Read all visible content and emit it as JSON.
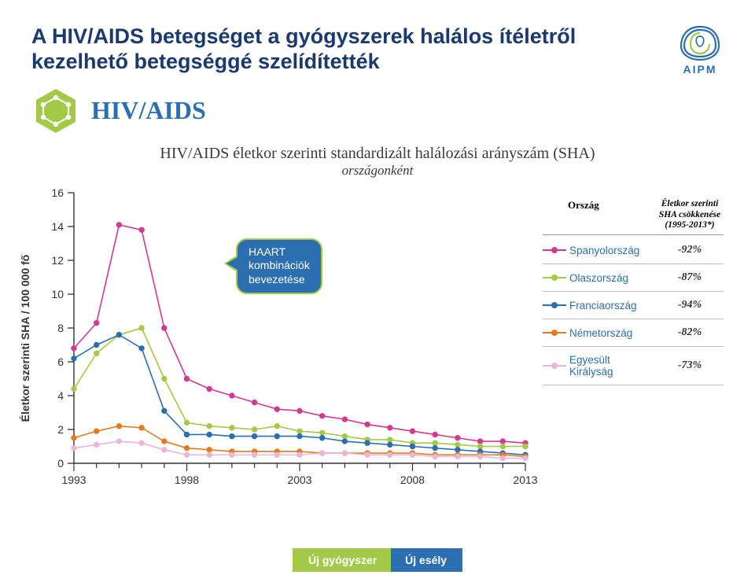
{
  "title": "A HIV/AIDS betegséget a gyógyszerek halálos ítéletről kezelhető betegséggé szelídítették",
  "logo_text": "AIPM",
  "subhead": "HIV/AIDS",
  "chart": {
    "type": "line",
    "title": "HIV/AIDS életkor szerinti standardizált halálozási arányszám (SHA)",
    "subtitle": "országonként",
    "y_label": "Életkor szerinti SHA / 100 000 fő",
    "x_label": "",
    "ylim": [
      0,
      16
    ],
    "yticks": [
      0,
      2,
      4,
      6,
      8,
      10,
      12,
      14,
      16
    ],
    "xlim": [
      1993,
      2013
    ],
    "xticks": [
      1993,
      1998,
      2003,
      2008,
      2013
    ],
    "years": [
      1993,
      1994,
      1995,
      1996,
      1997,
      1998,
      1999,
      2000,
      2001,
      2002,
      2003,
      2004,
      2005,
      2006,
      2007,
      2008,
      2009,
      2010,
      2011,
      2012,
      2013
    ],
    "grid_color": "#333333",
    "marker_size": 3.2,
    "line_width": 1.6,
    "background_color": "#ffffff",
    "callout": {
      "text_line1": "HAART",
      "text_line2": "kombinációk",
      "text_line3": "bevezetése",
      "bg_color": "#2c6fb0",
      "border_color": "#a3c948"
    },
    "series": [
      {
        "name": "Spanyolország",
        "color": "#d33a8f",
        "values": [
          6.8,
          8.3,
          14.1,
          13.8,
          8.0,
          5.0,
          4.4,
          4.0,
          3.6,
          3.2,
          3.1,
          2.8,
          2.6,
          2.3,
          2.1,
          1.9,
          1.7,
          1.5,
          1.3,
          1.3,
          1.2
        ]
      },
      {
        "name": "Olaszország",
        "color": "#a3c948",
        "values": [
          4.4,
          6.5,
          7.6,
          8.0,
          5.0,
          2.4,
          2.2,
          2.1,
          2.0,
          2.2,
          1.9,
          1.8,
          1.6,
          1.4,
          1.4,
          1.2,
          1.2,
          1.1,
          1.0,
          1.0,
          1.0
        ]
      },
      {
        "name": "Franciaország",
        "color": "#2c6fb0",
        "values": [
          6.2,
          7.0,
          7.6,
          6.8,
          3.1,
          1.7,
          1.7,
          1.6,
          1.6,
          1.6,
          1.6,
          1.5,
          1.3,
          1.2,
          1.1,
          1.0,
          0.9,
          0.8,
          0.7,
          0.6,
          0.5
        ]
      },
      {
        "name": "Németország",
        "color": "#e47a1f",
        "values": [
          1.5,
          1.9,
          2.2,
          2.1,
          1.3,
          0.9,
          0.8,
          0.7,
          0.7,
          0.7,
          0.7,
          0.6,
          0.6,
          0.6,
          0.6,
          0.6,
          0.5,
          0.5,
          0.5,
          0.5,
          0.4
        ]
      },
      {
        "name": "Egyesült Királyság",
        "color": "#e9b7d6",
        "values": [
          0.9,
          1.1,
          1.3,
          1.2,
          0.8,
          0.5,
          0.5,
          0.5,
          0.5,
          0.5,
          0.5,
          0.6,
          0.6,
          0.5,
          0.5,
          0.5,
          0.4,
          0.4,
          0.4,
          0.3,
          0.3
        ]
      }
    ]
  },
  "legend": {
    "header_country": "Ország",
    "header_pct": "Életkor szerinti SHA csökkenése (1995-2013*)",
    "rows": [
      {
        "country": "Spanyolország",
        "pct": "-92%",
        "color": "#d33a8f"
      },
      {
        "country": "Olaszország",
        "pct": "-87%",
        "color": "#a3c948"
      },
      {
        "country": "Franciaország",
        "pct": "-94%",
        "color": "#2c6fb0"
      },
      {
        "country": "Németország",
        "pct": "-82%",
        "color": "#e47a1f"
      },
      {
        "country": "Egyesült Királyság",
        "pct": "-73%",
        "color": "#e9b7d6"
      }
    ]
  },
  "footer": {
    "left": "Új gyógyszer",
    "right": "Új esély"
  },
  "colors": {
    "brand_blue": "#2c6fb0",
    "brand_green": "#a3c948",
    "title_navy": "#1a3a6e"
  }
}
